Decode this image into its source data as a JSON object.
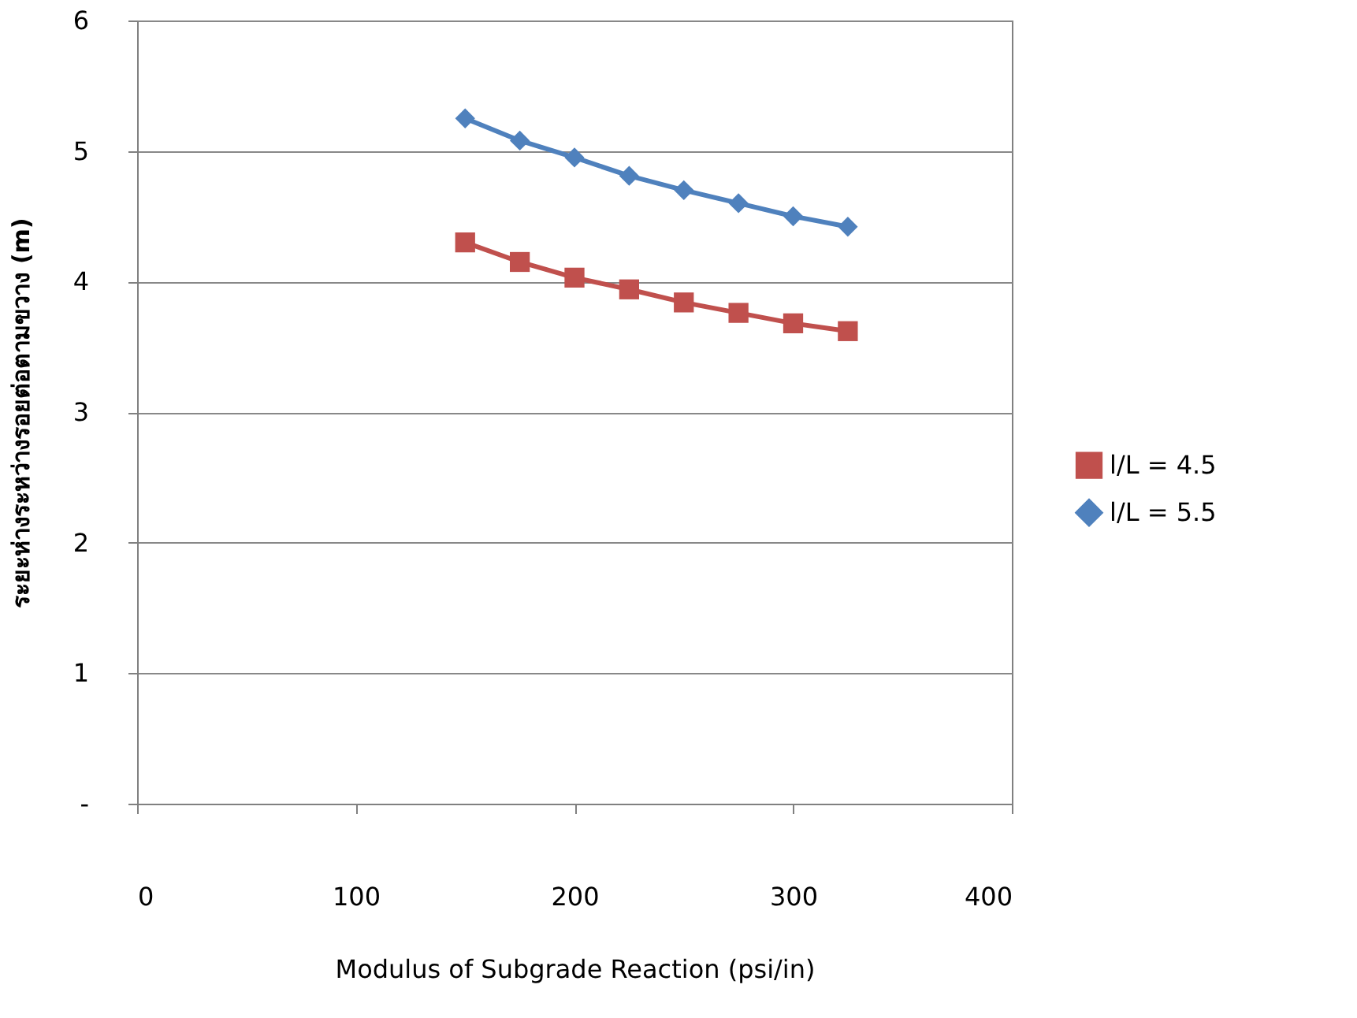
{
  "chart_data": {
    "type": "line",
    "xlabel": "Modulus of Subgrade Reaction  (psi/in)",
    "ylabel": "ระยะห่างระหว่างรอยต่อตามขวาง (m)",
    "x": [
      150,
      175,
      200,
      225,
      250,
      275,
      300,
      325
    ],
    "series": [
      {
        "name": "l/L = 4.5",
        "color": "#c0504d",
        "marker": "square",
        "values": [
          4.3,
          4.15,
          4.03,
          3.94,
          3.84,
          3.76,
          3.68,
          3.62
        ]
      },
      {
        "name": "l/L = 5.5",
        "color": "#4f81bd",
        "marker": "diamond",
        "values": [
          5.25,
          5.08,
          4.95,
          4.81,
          4.7,
          4.6,
          4.5,
          4.42
        ]
      }
    ],
    "xlim": [
      0,
      400
    ],
    "xticks": [
      0,
      100,
      200,
      300,
      400
    ],
    "ylim": [
      0,
      6
    ],
    "yticks": [
      {
        "value": 0,
        "label": "-"
      },
      1,
      2,
      3,
      4,
      5,
      6
    ],
    "grid": "y",
    "legend": "right",
    "line_style": "solid"
  }
}
